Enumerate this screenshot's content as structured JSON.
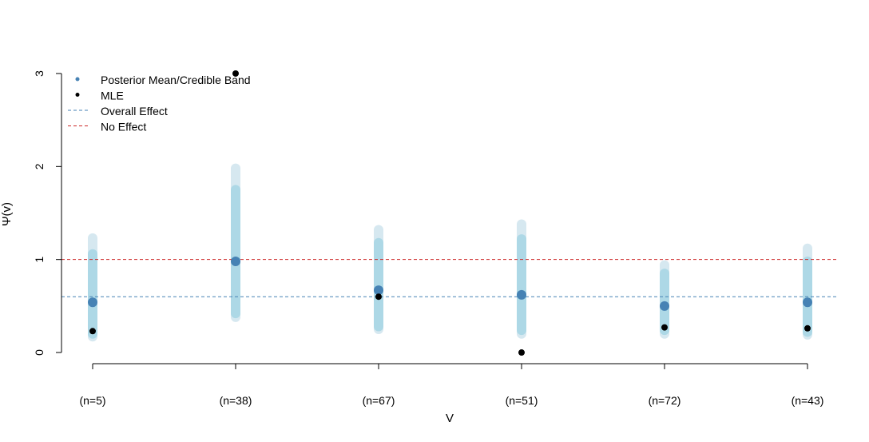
{
  "chart_data": {
    "type": "scatter",
    "title": "",
    "xlabel": "V",
    "ylabel": "Ψ(v)",
    "categories": [
      "(n=5)",
      "(n=38)",
      "(n=67)",
      "(n=51)",
      "(n=72)",
      "(n=43)"
    ],
    "ylim": [
      -0.12,
      3.12
    ],
    "yticks": [
      "0",
      "1",
      "2",
      "3"
    ],
    "series": [
      {
        "name": "Posterior Mean/Credible Band",
        "marker": "point",
        "values": [
          0.54,
          0.98,
          0.67,
          0.62,
          0.5,
          0.54
        ],
        "band_outer": [
          [
            0.17,
            1.23
          ],
          [
            0.38,
            1.98
          ],
          [
            0.25,
            1.32
          ],
          [
            0.2,
            1.38
          ],
          [
            0.2,
            0.94
          ],
          [
            0.19,
            1.12
          ]
        ],
        "band_inner": [
          [
            0.2,
            1.06
          ],
          [
            0.42,
            1.75
          ],
          [
            0.28,
            1.18
          ],
          [
            0.24,
            1.22
          ],
          [
            0.24,
            0.85
          ],
          [
            0.22,
            0.98
          ]
        ]
      },
      {
        "name": "MLE",
        "marker": "point",
        "values": [
          0.23,
          3.0,
          0.6,
          0.0,
          0.27,
          0.26
        ]
      },
      {
        "name": "Overall Effect",
        "marker": "dashed-line",
        "value": 0.6
      },
      {
        "name": "No Effect",
        "marker": "dashed-line",
        "value": 1.0
      }
    ],
    "legend": "top-left",
    "grid": false,
    "colors": {
      "posterior_mean": "#4682b4",
      "band_inner": "#add8e6",
      "band_outer": "#d6e8f0",
      "mle": "#000000",
      "overall_effect": "#4682b4",
      "no_effect": "#cd2626"
    }
  }
}
